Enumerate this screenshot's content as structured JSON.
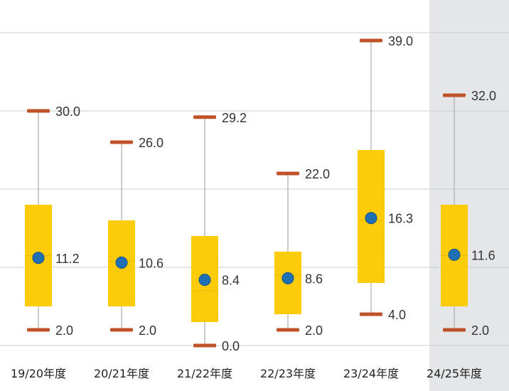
{
  "chart_data": {
    "type": "box",
    "title": "",
    "xlabel": "",
    "ylabel": "",
    "ylim": [
      0,
      40
    ],
    "grid": true,
    "highlighted_category": "24/25年度",
    "categories": [
      "19/20年度",
      "20/21年度",
      "21/22年度",
      "22/23年度",
      "23/24年度",
      "24/25年度"
    ],
    "series": [
      {
        "category": "19/20年度",
        "min": 2.0,
        "q1": 5.0,
        "median": 11.5,
        "q3": 18.0,
        "max": 30.0,
        "mean": 11.2
      },
      {
        "category": "20/21年度",
        "min": 2.0,
        "q1": 5.0,
        "median": 10.8,
        "q3": 16.0,
        "max": 26.0,
        "mean": 10.6
      },
      {
        "category": "21/22年度",
        "min": 0.0,
        "q1": 3.0,
        "median": 7.0,
        "q3": 14.0,
        "max": 29.2,
        "mean": 8.4
      },
      {
        "category": "22/23年度",
        "min": 2.0,
        "q1": 4.0,
        "median": 9.0,
        "q3": 12.0,
        "max": 22.0,
        "mean": 8.6
      },
      {
        "category": "23/24年度",
        "min": 4.0,
        "q1": 8.0,
        "median": 16.0,
        "q3": 25.0,
        "max": 39.0,
        "mean": 16.3
      },
      {
        "category": "24/25年度",
        "min": 2.0,
        "q1": 5.0,
        "median": 11.5,
        "q3": 18.0,
        "max": 32.0,
        "mean": 11.6
      }
    ],
    "labels": {
      "max": [
        "30.0",
        "26.0",
        "29.2",
        "22.0",
        "39.0",
        "32.0"
      ],
      "mean": [
        "11.2",
        "10.6",
        "8.4",
        "8.6",
        "16.3",
        "11.6"
      ],
      "min": [
        "2.0",
        "2.0",
        "0.0",
        "2.0",
        "4.0",
        "2.0"
      ]
    },
    "colors": {
      "box": "#fccc0a",
      "cap": "#c0522a",
      "mean_marker": "#1f6fb5",
      "whisker": "#aaaaaa",
      "grid": "#cccccc",
      "highlight_band": "#e5e6e8"
    }
  }
}
